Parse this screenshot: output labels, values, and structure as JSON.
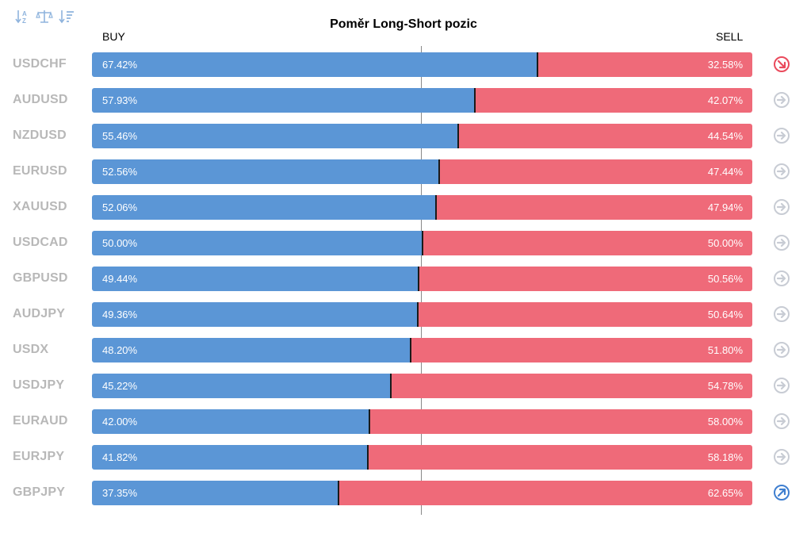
{
  "toolbar": {
    "buttons": [
      {
        "icon": "sort-alpha-icon"
      },
      {
        "icon": "balance-scale-icon"
      },
      {
        "icon": "sort-amount-icon"
      }
    ]
  },
  "colors": {
    "buy": "#5b96d6",
    "sell": "#ef6a79",
    "neutral_icon": "#c8ccd4",
    "bearish_icon": "#ea4a5c",
    "bullish_icon": "#3f7fd0"
  },
  "chart_data": {
    "type": "bar",
    "orientation": "horizontal-stacked-100",
    "title": "Poměr Long-Short pozic",
    "left_label": "BUY",
    "right_label": "SELL",
    "categories": [
      "USDCHF",
      "AUDUSD",
      "NZDUSD",
      "EURUSD",
      "XAUUSD",
      "USDCAD",
      "GBPUSD",
      "AUDJPY",
      "USDX",
      "USDJPY",
      "EURAUD",
      "EURJPY",
      "GBPJPY"
    ],
    "series": [
      {
        "name": "BUY",
        "values": [
          67.42,
          57.93,
          55.46,
          52.56,
          52.06,
          50.0,
          49.44,
          49.36,
          48.2,
          45.22,
          42.0,
          41.82,
          37.35
        ]
      },
      {
        "name": "SELL",
        "values": [
          32.58,
          42.07,
          44.54,
          47.44,
          47.94,
          50.0,
          50.56,
          50.64,
          51.8,
          54.78,
          58.0,
          58.18,
          62.65
        ]
      }
    ],
    "labels": {
      "buy": [
        "67.42%",
        "57.93%",
        "55.46%",
        "52.56%",
        "52.06%",
        "50.00%",
        "49.44%",
        "49.36%",
        "48.20%",
        "45.22%",
        "42.00%",
        "41.82%",
        "37.35%"
      ],
      "sell": [
        "32.58%",
        "42.07%",
        "44.54%",
        "47.44%",
        "47.94%",
        "50.00%",
        "50.56%",
        "50.64%",
        "51.80%",
        "54.78%",
        "58.00%",
        "58.18%",
        "62.65%"
      ]
    },
    "signals": [
      "bearish",
      "neutral",
      "neutral",
      "neutral",
      "neutral",
      "neutral",
      "neutral",
      "neutral",
      "neutral",
      "neutral",
      "neutral",
      "neutral",
      "bullish"
    ],
    "xlim": [
      0,
      100
    ],
    "reference_line": 50
  }
}
